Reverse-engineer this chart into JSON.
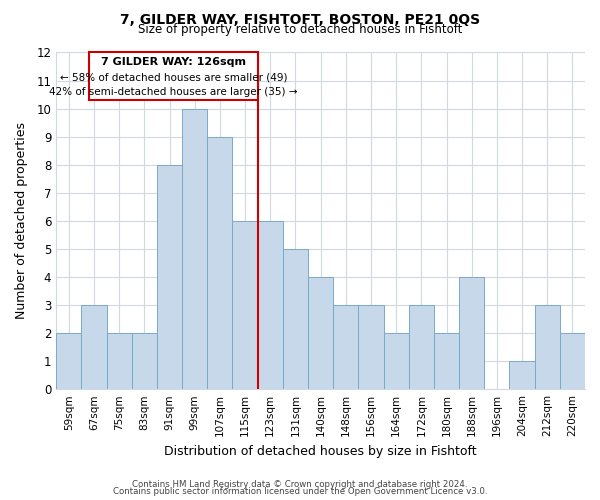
{
  "title": "7, GILDER WAY, FISHTOFT, BOSTON, PE21 0QS",
  "subtitle": "Size of property relative to detached houses in Fishtoft",
  "xlabel": "Distribution of detached houses by size in Fishtoft",
  "ylabel": "Number of detached properties",
  "bar_labels": [
    "59sqm",
    "67sqm",
    "75sqm",
    "83sqm",
    "91sqm",
    "99sqm",
    "107sqm",
    "115sqm",
    "123sqm",
    "131sqm",
    "140sqm",
    "148sqm",
    "156sqm",
    "164sqm",
    "172sqm",
    "180sqm",
    "188sqm",
    "196sqm",
    "204sqm",
    "212sqm",
    "220sqm"
  ],
  "bar_values": [
    2,
    3,
    2,
    2,
    8,
    10,
    9,
    6,
    6,
    5,
    4,
    3,
    3,
    2,
    3,
    2,
    4,
    0,
    1,
    3,
    2
  ],
  "bar_color": "#c8d8eb",
  "bar_edge_color": "#7aaac8",
  "highlight_line_color": "#cc0000",
  "highlight_line_index": 8,
  "annotation_title": "7 GILDER WAY: 126sqm",
  "annotation_line1": "← 58% of detached houses are smaller (49)",
  "annotation_line2": "42% of semi-detached houses are larger (35) →",
  "annotation_box_color": "#ffffff",
  "annotation_box_edge": "#cc0000",
  "ylim": [
    0,
    12
  ],
  "yticks": [
    0,
    1,
    2,
    3,
    4,
    5,
    6,
    7,
    8,
    9,
    10,
    11,
    12
  ],
  "footer1": "Contains HM Land Registry data © Crown copyright and database right 2024.",
  "footer2": "Contains public sector information licensed under the Open Government Licence v3.0.",
  "bg_color": "#ffffff",
  "grid_color": "#d0d8e0"
}
